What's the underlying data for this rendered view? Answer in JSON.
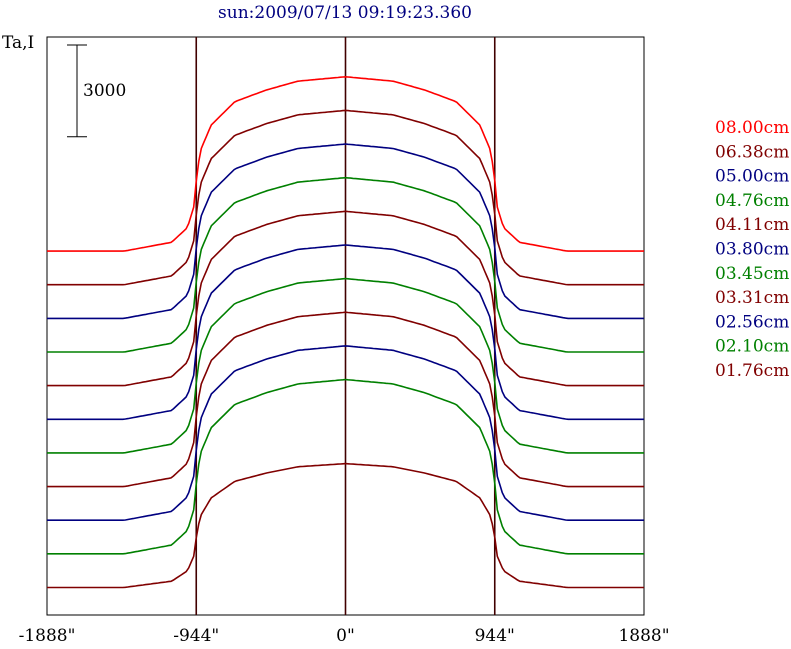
{
  "chart_data": {
    "type": "line",
    "title": "sun:2009/07/13 09:19:23.360",
    "ylabel": "Ta,I",
    "scale_bar": {
      "label": "3000",
      "value": 3000
    },
    "xlim": [
      -1888,
      1888
    ],
    "x_ticks": [
      {
        "value": -1888,
        "label": "-1888\""
      },
      {
        "value": -944,
        "label": "-944\""
      },
      {
        "value": 0,
        "label": "0\""
      },
      {
        "value": 944,
        "label": "944\""
      },
      {
        "value": 1888,
        "label": "1888\""
      }
    ],
    "vertical_markers": [
      -944,
      0,
      944
    ],
    "series_shape": {
      "description_x": [
        -1888,
        -1400,
        -1100,
        -1000,
        -960,
        -944,
        -920,
        -850,
        -700,
        -500,
        -300,
        0,
        300,
        500,
        700,
        850,
        920,
        944,
        960,
        1000,
        1100,
        1400,
        1888
      ],
      "relative_y": [
        0,
        0,
        300,
        800,
        1500,
        2400,
        3400,
        4300,
        5100,
        5500,
        5800,
        5950,
        5800,
        5500,
        5100,
        4300,
        3400,
        2400,
        1500,
        800,
        300,
        0,
        0
      ]
    },
    "series": [
      {
        "name": "08.00cm",
        "color": "#ff0000",
        "baseline": 11000,
        "amplitude": 5700
      },
      {
        "name": "06.38cm",
        "color": "#800000",
        "baseline": 9900,
        "amplitude": 5700
      },
      {
        "name": "05.00cm",
        "color": "#000080",
        "baseline": 8800,
        "amplitude": 5700
      },
      {
        "name": "04.76cm",
        "color": "#008000",
        "baseline": 7700,
        "amplitude": 5700
      },
      {
        "name": "04.11cm",
        "color": "#800000",
        "baseline": 6600,
        "amplitude": 5700
      },
      {
        "name": "03.80cm",
        "color": "#000080",
        "baseline": 5500,
        "amplitude": 5700
      },
      {
        "name": "03.45cm",
        "color": "#008000",
        "baseline": 4400,
        "amplitude": 5700
      },
      {
        "name": "03.31cm",
        "color": "#800000",
        "baseline": 3300,
        "amplitude": 5700
      },
      {
        "name": "02.56cm",
        "color": "#000080",
        "baseline": 2200,
        "amplitude": 5700
      },
      {
        "name": "02.10cm",
        "color": "#008000",
        "baseline": 1100,
        "amplitude": 5700
      },
      {
        "name": "01.76cm",
        "color": "#800000",
        "baseline": 0,
        "amplitude": 4050
      }
    ],
    "ylim": [
      -900,
      18000
    ],
    "grid": false,
    "legend_placement": "right"
  }
}
